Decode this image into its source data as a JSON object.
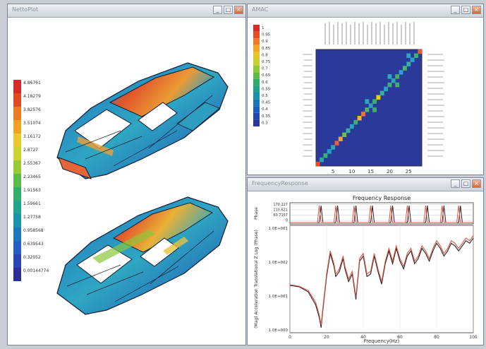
{
  "windows": {
    "left": {
      "title": "NettoPlot"
    },
    "top_right": {
      "title": "AMAC"
    },
    "bottom_right": {
      "title": "FrequencyResponse"
    }
  },
  "controls": {
    "minimize": "_",
    "maximize": "□",
    "close": "×"
  },
  "contour_legend": {
    "values": [
      "4.86761",
      "4.18279",
      "3.82576",
      "3.51074",
      "3.16172",
      "2.8727",
      "2.55367",
      "2.23465",
      "1.91563",
      "1.59661",
      "1.27758",
      "0.958568",
      "0.639543",
      "0.32052",
      "0.00144774"
    ],
    "colors": [
      "#d8282a",
      "#e24a22",
      "#ee7a22",
      "#f5a223",
      "#ecc928",
      "#c9d52e",
      "#97cc34",
      "#58bd48",
      "#2fb06a",
      "#1fa58e",
      "#1a93ad",
      "#1d79bf",
      "#2160c5",
      "#2b44b8",
      "#2a2f9a"
    ]
  },
  "mac_legend": {
    "values": [
      "1",
      "0.95",
      "0.9",
      "0.85",
      "0.8",
      "0.75",
      "0.7",
      "0.65",
      "0.6",
      "0.55",
      "0.5",
      "0.45",
      "0.4",
      "0.35",
      "0.3"
    ],
    "colors": [
      "#d92a26",
      "#e54f22",
      "#ef7a23",
      "#f5a424",
      "#e8c72b",
      "#c5d22f",
      "#93c838",
      "#5eba48",
      "#30ac66",
      "#1e9f88",
      "#1a8fa8",
      "#1b77bb",
      "#1f5fbf",
      "#2646b3",
      "#2b3698"
    ]
  },
  "mac_axis": {
    "x_ticks": [
      "5",
      "10",
      "15",
      "20",
      "25"
    ]
  },
  "mac_cells": [
    {
      "i": 1,
      "j": 1,
      "c": "#e84a24"
    },
    {
      "i": 2,
      "j": 2,
      "c": "#2aa9a2"
    },
    {
      "i": 3,
      "j": 3,
      "c": "#36b06c"
    },
    {
      "i": 4,
      "j": 4,
      "c": "#1fa5c0"
    },
    {
      "i": 5,
      "j": 5,
      "c": "#2ea8b0"
    },
    {
      "i": 6,
      "j": 6,
      "c": "#e8603a"
    },
    {
      "i": 7,
      "j": 7,
      "c": "#f0a23a"
    },
    {
      "i": 8,
      "j": 8,
      "c": "#6cc150"
    },
    {
      "i": 9,
      "j": 9,
      "c": "#3aae9a"
    },
    {
      "i": 10,
      "j": 10,
      "c": "#2a9fc0"
    },
    {
      "i": 11,
      "j": 11,
      "c": "#3db06a"
    },
    {
      "i": 12,
      "j": 12,
      "c": "#f0b43a"
    },
    {
      "i": 13,
      "j": 13,
      "c": "#e87434"
    },
    {
      "i": 14,
      "j": 14,
      "c": "#48b46e"
    },
    {
      "i": 15,
      "j": 15,
      "c": "#2e9ec4"
    },
    {
      "i": 16,
      "j": 16,
      "c": "#3aae72"
    },
    {
      "i": 17,
      "j": 17,
      "c": "#f2c034"
    },
    {
      "i": 18,
      "j": 18,
      "c": "#3aae9a"
    },
    {
      "i": 19,
      "j": 19,
      "c": "#28a3c0"
    },
    {
      "i": 20,
      "j": 20,
      "c": "#3eb06e"
    },
    {
      "i": 21,
      "j": 21,
      "c": "#2aa6b6"
    },
    {
      "i": 22,
      "j": 22,
      "c": "#3cb06c"
    },
    {
      "i": 23,
      "j": 23,
      "c": "#2f9fc2"
    },
    {
      "i": 24,
      "j": 24,
      "c": "#4bb56c"
    },
    {
      "i": 25,
      "j": 25,
      "c": "#36b0a0"
    },
    {
      "i": 26,
      "j": 26,
      "c": "#2aa3c0"
    },
    {
      "i": 27,
      "j": 27,
      "c": "#3db06c"
    },
    {
      "i": 28,
      "j": 28,
      "c": "#e85a30"
    },
    {
      "i": 14,
      "j": 16,
      "c": "#2fa8b6"
    },
    {
      "i": 16,
      "j": 14,
      "c": "#3cae6e"
    },
    {
      "i": 20,
      "j": 22,
      "c": "#2aa8c2"
    },
    {
      "i": 22,
      "j": 20,
      "c": "#3fb06c"
    },
    {
      "i": 25,
      "j": 27,
      "c": "#2fa6c0"
    }
  ],
  "frf": {
    "title": "Frequency Response",
    "ylabel_phase": "Phase",
    "ylabel_mag": "(Mag) Acceleration Translational Z Log (Phase)",
    "xlabel": "Frequency(Hz)",
    "phase_ticks": [
      "170.227",
      "110.621",
      "60.7157",
      "0"
    ],
    "mag_ticks": [
      "1.0E+001",
      "1.0E+002",
      "1.0E+001",
      "1.0E+000"
    ],
    "x_ticks": [
      "0",
      "20",
      "40",
      "60",
      "80",
      "100"
    ],
    "series": [
      {
        "name": "",
        "color": "#222222",
        "phase": [
          [
            0,
            0
          ],
          [
            16,
            0
          ],
          [
            17,
            1
          ],
          [
            18,
            0
          ],
          [
            25,
            0
          ],
          [
            26,
            1
          ],
          [
            27,
            0
          ],
          [
            35,
            0
          ],
          [
            36,
            1
          ],
          [
            37,
            0
          ],
          [
            44,
            0
          ],
          [
            45,
            1
          ],
          [
            46,
            0
          ],
          [
            55,
            0
          ],
          [
            56,
            1
          ],
          [
            57,
            0
          ],
          [
            64,
            0
          ],
          [
            65,
            1
          ],
          [
            66,
            0
          ],
          [
            74,
            0
          ],
          [
            75,
            1
          ],
          [
            76,
            0
          ],
          [
            83,
            0
          ],
          [
            84,
            1
          ],
          [
            85,
            0
          ],
          [
            92,
            0
          ],
          [
            93,
            1
          ],
          [
            94,
            0
          ],
          [
            100,
            0
          ]
        ],
        "mag": [
          [
            0,
            -0.15
          ],
          [
            5,
            -0.2
          ],
          [
            10,
            -0.4
          ],
          [
            14,
            -0.9
          ],
          [
            16,
            -1.4
          ],
          [
            17,
            -1.8
          ],
          [
            18,
            -1.1
          ],
          [
            20,
            0.2
          ],
          [
            22,
            1.1
          ],
          [
            24,
            0.6
          ],
          [
            25,
            0.2
          ],
          [
            27,
            0.4
          ],
          [
            29,
            0.9
          ],
          [
            30,
            0.5
          ],
          [
            32,
            0
          ],
          [
            34,
            0.3
          ],
          [
            36,
            -0.7
          ],
          [
            38,
            0.8
          ],
          [
            40,
            1.0
          ],
          [
            42,
            0.2
          ],
          [
            44,
            0.3
          ],
          [
            46,
            1.0
          ],
          [
            48,
            0.4
          ],
          [
            50,
            -0.1
          ],
          [
            52,
            0.7
          ],
          [
            54,
            1.2
          ],
          [
            56,
            0.7
          ],
          [
            58,
            1.3
          ],
          [
            60,
            0.8
          ],
          [
            62,
            0.5
          ],
          [
            64,
            1.0
          ],
          [
            66,
            1.2
          ],
          [
            68,
            0.7
          ],
          [
            70,
            0.9
          ],
          [
            72,
            1.3
          ],
          [
            74,
            1.1
          ],
          [
            76,
            0.8
          ],
          [
            78,
            1.2
          ],
          [
            80,
            1.5
          ],
          [
            82,
            1.3
          ],
          [
            84,
            1.0
          ],
          [
            86,
            1.2
          ],
          [
            88,
            1.5
          ],
          [
            90,
            1.4
          ],
          [
            92,
            1.2
          ],
          [
            94,
            1.4
          ],
          [
            96,
            1.6
          ],
          [
            98,
            1.5
          ],
          [
            100,
            1.7
          ]
        ]
      },
      {
        "name": "",
        "color": "#e0513e",
        "phase": [
          [
            0,
            0
          ],
          [
            15,
            0
          ],
          [
            16,
            1
          ],
          [
            17,
            0
          ],
          [
            24,
            0
          ],
          [
            25,
            1
          ],
          [
            26,
            0
          ],
          [
            34,
            0
          ],
          [
            35,
            1
          ],
          [
            36,
            0
          ],
          [
            43,
            0
          ],
          [
            44,
            1
          ],
          [
            45,
            0
          ],
          [
            54,
            0
          ],
          [
            55,
            1
          ],
          [
            56,
            0
          ],
          [
            63,
            0
          ],
          [
            64,
            1
          ],
          [
            65,
            0
          ],
          [
            73,
            0
          ],
          [
            74,
            1
          ],
          [
            75,
            0
          ],
          [
            82,
            0
          ],
          [
            83,
            1
          ],
          [
            84,
            0
          ],
          [
            91,
            0
          ],
          [
            92,
            1
          ],
          [
            93,
            0
          ],
          [
            100,
            0
          ]
        ],
        "mag": [
          [
            0,
            -0.12
          ],
          [
            5,
            -0.18
          ],
          [
            10,
            -0.35
          ],
          [
            14,
            -0.8
          ],
          [
            16,
            -1.3
          ],
          [
            17,
            -1.7
          ],
          [
            18,
            -1.0
          ],
          [
            20,
            0.3
          ],
          [
            22,
            1.2
          ],
          [
            24,
            0.7
          ],
          [
            25,
            0.3
          ],
          [
            27,
            0.5
          ],
          [
            29,
            1.0
          ],
          [
            30,
            0.6
          ],
          [
            32,
            0.1
          ],
          [
            34,
            0.4
          ],
          [
            36,
            -0.6
          ],
          [
            38,
            0.9
          ],
          [
            40,
            1.1
          ],
          [
            42,
            0.3
          ],
          [
            44,
            0.4
          ],
          [
            46,
            1.1
          ],
          [
            48,
            0.5
          ],
          [
            50,
            0.0
          ],
          [
            52,
            0.8
          ],
          [
            54,
            1.3
          ],
          [
            56,
            0.8
          ],
          [
            58,
            1.4
          ],
          [
            60,
            0.9
          ],
          [
            62,
            0.6
          ],
          [
            64,
            1.1
          ],
          [
            66,
            1.3
          ],
          [
            68,
            0.8
          ],
          [
            70,
            1.0
          ],
          [
            72,
            1.4
          ],
          [
            74,
            1.2
          ],
          [
            76,
            0.9
          ],
          [
            78,
            1.3
          ],
          [
            80,
            1.6
          ],
          [
            82,
            1.4
          ],
          [
            84,
            1.1
          ],
          [
            86,
            1.3
          ],
          [
            88,
            1.6
          ],
          [
            90,
            1.5
          ],
          [
            92,
            1.3
          ],
          [
            94,
            1.5
          ],
          [
            96,
            1.7
          ],
          [
            98,
            1.6
          ],
          [
            100,
            1.8
          ]
        ]
      }
    ]
  }
}
